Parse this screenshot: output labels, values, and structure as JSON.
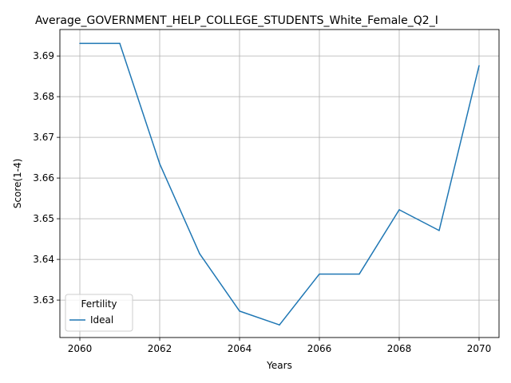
{
  "chart_data": {
    "type": "line",
    "title": "Average_GOVERNMENT_HELP_COLLEGE_STUDENTS_White_Female_Q2_I",
    "xlabel": "Years",
    "ylabel": "Score(1-4)",
    "x": [
      2060,
      2061,
      2062,
      2063,
      2064,
      2065,
      2066,
      2067,
      2068,
      2069,
      2070
    ],
    "xlim": [
      2059.5,
      2070.5
    ],
    "ylim": [
      3.6208,
      3.6965
    ],
    "x_ticks": [
      2060,
      2062,
      2064,
      2066,
      2068,
      2070
    ],
    "y_ticks": [
      3.63,
      3.64,
      3.65,
      3.66,
      3.67,
      3.68,
      3.69
    ],
    "x_tick_labels": [
      "2060",
      "2062",
      "2064",
      "2066",
      "2068",
      "2070"
    ],
    "y_tick_labels": [
      "3.63",
      "3.64",
      "3.65",
      "3.66",
      "3.67",
      "3.68",
      "3.69"
    ],
    "grid": true,
    "legend": {
      "title": "Fertility",
      "placement": "lower-left"
    },
    "series": [
      {
        "name": "Ideal",
        "color": "#1f77b4",
        "values": [
          3.6931,
          3.6931,
          3.6635,
          3.6414,
          3.6273,
          3.6239,
          3.6364,
          3.6364,
          3.6522,
          3.6471,
          3.6876
        ]
      }
    ]
  }
}
